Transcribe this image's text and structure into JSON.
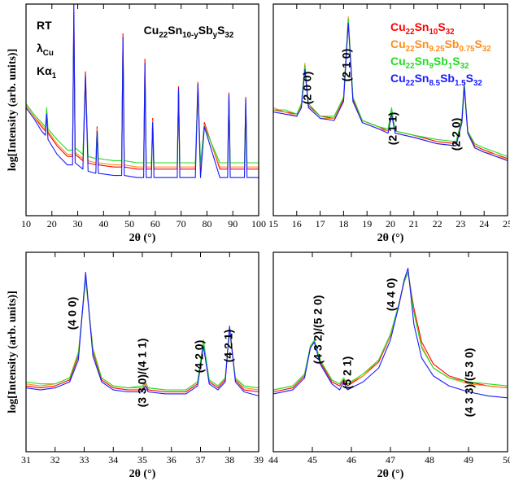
{
  "chart_data": [
    {
      "type": "line",
      "xlabel": "2θ (°)",
      "ylabel": "log[Intensity (arb. units)]",
      "annotations": [
        "RT",
        "λCu",
        "Kα1",
        "Cu22Sn10-ySbyS32"
      ],
      "xlim": [
        10,
        100
      ],
      "xticks": [
        10,
        20,
        30,
        40,
        50,
        60,
        70,
        80,
        90,
        100
      ],
      "ylim": [
        0,
        100
      ],
      "x": [
        10,
        13,
        16,
        17.5,
        18,
        18.5,
        22,
        26,
        28,
        28.5,
        29,
        32,
        33,
        34,
        37,
        37.5,
        38,
        44,
        47,
        47.5,
        48,
        53,
        55.5,
        56,
        56.5,
        58.5,
        59,
        59.5,
        66,
        68.5,
        69,
        69.5,
        75.5,
        76.5,
        77.5,
        79,
        85,
        88,
        88.5,
        89,
        94.5,
        95,
        95.5,
        100
      ],
      "series": [
        {
          "color": "#ff0000",
          "values": [
            52,
            47,
            42,
            40,
            50,
            39,
            33,
            28,
            28,
            96,
            29,
            26,
            68,
            25,
            24,
            42,
            24,
            23,
            23,
            86,
            23,
            22,
            22,
            74,
            22,
            22,
            46,
            22,
            22,
            22,
            61,
            22,
            22,
            63,
            22,
            44,
            22,
            22,
            58,
            22,
            22,
            56,
            22,
            22
          ]
        },
        {
          "color": "#ff8c1a",
          "values": [
            52,
            47,
            43,
            41,
            49,
            40,
            34,
            29,
            29,
            88,
            30,
            27,
            62,
            26,
            25,
            41,
            25,
            24,
            24,
            80,
            24,
            23,
            23,
            70,
            23,
            23,
            45,
            23,
            23,
            23,
            58,
            23,
            23,
            60,
            23,
            43,
            23,
            23,
            56,
            23,
            23,
            54,
            23,
            23
          ]
        },
        {
          "color": "#22dd22",
          "values": [
            53,
            48,
            44,
            42,
            51,
            41,
            36,
            31,
            31,
            90,
            32,
            29,
            64,
            28,
            27,
            40,
            27,
            26,
            26,
            82,
            26,
            25,
            25,
            70,
            25,
            25,
            44,
            25,
            25,
            25,
            58,
            25,
            25,
            60,
            25,
            42,
            25,
            25,
            55,
            25,
            25,
            53,
            25,
            25
          ]
        },
        {
          "color": "#1a1aff",
          "values": [
            51,
            46,
            40,
            38,
            48,
            36,
            29,
            24,
            24,
            100,
            25,
            22,
            66,
            21,
            20,
            40,
            20,
            19,
            19,
            84,
            19,
            18,
            18,
            72,
            18,
            18,
            44,
            18,
            18,
            18,
            60,
            18,
            18,
            62,
            18,
            42,
            18,
            18,
            57,
            18,
            18,
            55,
            18,
            18
          ]
        }
      ]
    },
    {
      "type": "line",
      "xlabel": "2θ (°)",
      "annotations": [
        "(2 0 0)",
        "(2 1 0)",
        "(2 1 1)",
        "(2 2 0)"
      ],
      "xlim": [
        15,
        25
      ],
      "xticks": [
        15,
        16,
        17,
        18,
        19,
        20,
        21,
        22,
        23,
        24,
        25
      ],
      "ylim": [
        0,
        100
      ],
      "x": [
        15,
        15.5,
        16,
        16.2,
        16.35,
        16.5,
        17,
        17.6,
        18,
        18.2,
        18.4,
        18.8,
        19.5,
        19.9,
        20.05,
        20.2,
        21,
        22,
        22.8,
        23.05,
        23.15,
        23.3,
        23.6,
        24,
        24.5,
        25
      ],
      "series": [
        {
          "name": "Cu22Sn10S32",
          "color": "#ff0000",
          "values": [
            50,
            49,
            48,
            52,
            70,
            52,
            47,
            46,
            55,
            92,
            55,
            45,
            42,
            40,
            50,
            40,
            38,
            35,
            34,
            45,
            62,
            40,
            33,
            31,
            29,
            27
          ]
        },
        {
          "name": "Cu22Sn9.25Sb0.75S32",
          "color": "#ff8c1a",
          "values": [
            51,
            49,
            47,
            53,
            72,
            51,
            46,
            46,
            56,
            94,
            54,
            44,
            41,
            40,
            49,
            39,
            37,
            34,
            33,
            44,
            64,
            39,
            32,
            30,
            29,
            26
          ]
        },
        {
          "name": "Cu22Sn9Sb1S32",
          "color": "#22dd22",
          "values": [
            50,
            50,
            48,
            53,
            71,
            53,
            47,
            47,
            56,
            93,
            56,
            45,
            42,
            41,
            51,
            40,
            38,
            36,
            35,
            46,
            63,
            40,
            34,
            32,
            30,
            28
          ]
        },
        {
          "name": "Cu22Sn8.5Sb1.5S32",
          "color": "#1a1aff",
          "values": [
            49,
            48,
            47,
            51,
            69,
            51,
            46,
            45,
            54,
            91,
            54,
            44,
            41,
            39,
            48,
            39,
            37,
            34,
            33,
            44,
            61,
            39,
            32,
            30,
            28,
            26
          ]
        }
      ]
    },
    {
      "type": "line",
      "xlabel": "2θ (°)",
      "ylabel": "log[Intensity (arb. units)]",
      "annotations": [
        "(4 0 0)",
        "(3 3 0)/(4 1 1)",
        "(4 2 0)",
        "(4 2 1)"
      ],
      "xlim": [
        31,
        39
      ],
      "xticks": [
        31,
        32,
        33,
        34,
        35,
        36,
        37,
        38,
        39
      ],
      "ylim": [
        0,
        100
      ],
      "x": [
        31,
        31.5,
        32,
        32.5,
        32.8,
        33.05,
        33.3,
        33.6,
        34,
        34.5,
        35,
        35.1,
        35.2,
        35.8,
        36.5,
        36.9,
        37.1,
        37.3,
        37.6,
        37.85,
        38.0,
        38.2,
        38.5,
        39
      ],
      "series": [
        {
          "color": "#ff0000",
          "values": [
            33,
            32,
            33,
            36,
            48,
            88,
            50,
            36,
            32,
            31,
            31,
            35,
            31,
            30,
            30,
            34,
            55,
            35,
            32,
            36,
            62,
            36,
            31,
            30
          ]
        },
        {
          "color": "#ff8c1a",
          "values": [
            34,
            33,
            34,
            37,
            50,
            86,
            52,
            37,
            33,
            32,
            32,
            34,
            32,
            31,
            31,
            35,
            54,
            36,
            33,
            37,
            60,
            37,
            32,
            31
          ]
        },
        {
          "color": "#22dd22",
          "values": [
            35,
            34,
            34,
            37,
            49,
            87,
            51,
            37,
            33,
            32,
            33,
            35,
            32,
            31,
            31,
            35,
            56,
            36,
            33,
            37,
            61,
            37,
            33,
            32
          ]
        },
        {
          "color": "#1a1aff",
          "values": [
            32,
            31,
            32,
            35,
            46,
            90,
            48,
            35,
            31,
            30,
            30,
            33,
            30,
            29,
            29,
            33,
            53,
            34,
            31,
            35,
            63,
            35,
            30,
            28
          ]
        }
      ]
    },
    {
      "type": "line",
      "xlabel": "2θ (°)",
      "annotations": [
        "(4 3 2)/(5 2 0)",
        "(5 2 1)",
        "(4 4 0)",
        "(4 3 3)/(5 3 0)"
      ],
      "xlim": [
        44,
        50
      ],
      "xticks": [
        44,
        45,
        46,
        47,
        48,
        49,
        50
      ],
      "ylim": [
        0,
        100
      ],
      "x": [
        44,
        44.5,
        44.8,
        44.95,
        45.05,
        45.2,
        45.5,
        45.7,
        45.8,
        45.9,
        46.3,
        46.7,
        47,
        47.2,
        47.35,
        47.45,
        47.6,
        47.8,
        48.1,
        48.5,
        49,
        49.5,
        50
      ],
      "series": [
        {
          "color": "#ff0000",
          "values": [
            30,
            32,
            38,
            52,
            55,
            45,
            35,
            33,
            36,
            33,
            38,
            45,
            58,
            72,
            85,
            90,
            72,
            55,
            44,
            38,
            35,
            33,
            32
          ]
        },
        {
          "color": "#ff8c1a",
          "values": [
            31,
            33,
            39,
            53,
            55,
            46,
            36,
            34,
            36,
            34,
            38,
            46,
            58,
            72,
            85,
            90,
            70,
            53,
            42,
            37,
            34,
            33,
            32
          ]
        },
        {
          "color": "#22dd22",
          "values": [
            31,
            33,
            39,
            53,
            56,
            46,
            36,
            34,
            37,
            34,
            39,
            46,
            59,
            73,
            85,
            90,
            70,
            52,
            42,
            37,
            35,
            34,
            33
          ]
        },
        {
          "color": "#1a1aff",
          "values": [
            29,
            31,
            37,
            52,
            55,
            44,
            34,
            31,
            35,
            31,
            35,
            42,
            56,
            72,
            86,
            92,
            64,
            47,
            38,
            33,
            30,
            28,
            27
          ]
        }
      ]
    }
  ]
}
